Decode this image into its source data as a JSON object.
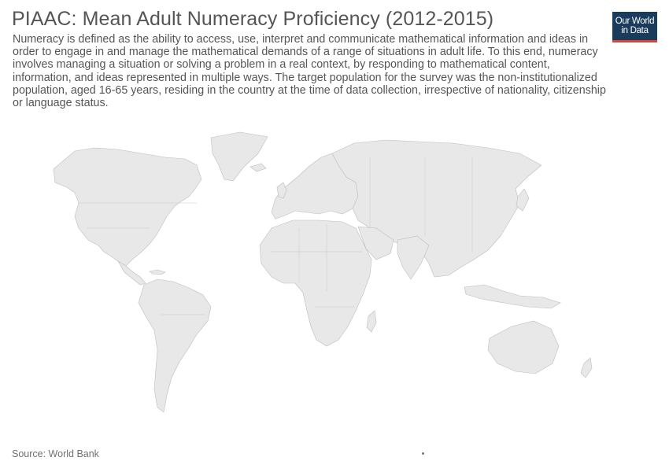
{
  "header": {
    "title": "PIAAC: Mean Adult Numeracy Proficiency (2012-2015)",
    "subtitle": "Numeracy is defined as the ability to access, use, interpret and communicate mathematical information and ideas in order to engage in and manage the mathematical demands of a range of situations in adult life. To this end, numeracy involves managing a situation or solving a problem in a real context, by responding to mathematical content, information, and ideas represented in multiple ways. The target population for the survey was the non-institutionalized population, aged 16-65 years, residing in the country at the time of data collection, irrespective of nationality, citizenship or language status."
  },
  "logo": {
    "line1": "Our World",
    "line2": "in Data"
  },
  "footer": {
    "source": "Source: World Bank"
  },
  "map": {
    "land_color": "#e8e8e8",
    "border_color": "#bdbdbd",
    "regions": [
      "North America",
      "Greenland",
      "South America",
      "Europe",
      "Africa",
      "Asia",
      "Australia"
    ]
  },
  "colors": {
    "text": "#555555",
    "logo_bg": "#1a3b5c",
    "logo_accent": "#d6463b"
  }
}
